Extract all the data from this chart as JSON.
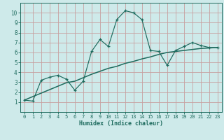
{
  "x": [
    0,
    1,
    2,
    3,
    4,
    5,
    6,
    7,
    8,
    9,
    10,
    11,
    12,
    13,
    14,
    15,
    16,
    17,
    18,
    19,
    20,
    21,
    22,
    23
  ],
  "y_scatter": [
    1.2,
    1.1,
    3.2,
    3.5,
    3.7,
    3.3,
    2.2,
    3.1,
    6.1,
    7.3,
    6.6,
    9.3,
    10.2,
    10.0,
    9.3,
    6.2,
    6.1,
    4.7,
    6.2,
    6.6,
    7.0,
    6.7,
    6.5,
    6.5
  ],
  "y_trend": [
    1.2,
    1.55,
    1.9,
    2.25,
    2.6,
    2.95,
    3.1,
    3.45,
    3.8,
    4.1,
    4.4,
    4.6,
    4.9,
    5.1,
    5.35,
    5.55,
    5.8,
    6.0,
    6.1,
    6.2,
    6.3,
    6.4,
    6.45,
    6.5
  ],
  "line_color": "#1e6b5e",
  "bg_color": "#ceeaea",
  "grid_color": "#c8a0a0",
  "xlabel": "Humidex (Indice chaleur)",
  "ylim": [
    0,
    11
  ],
  "xlim": [
    -0.5,
    23.5
  ],
  "yticks": [
    1,
    2,
    3,
    4,
    5,
    6,
    7,
    8,
    9,
    10
  ],
  "xticks": [
    0,
    1,
    2,
    3,
    4,
    5,
    6,
    7,
    8,
    9,
    10,
    11,
    12,
    13,
    14,
    15,
    16,
    17,
    18,
    19,
    20,
    21,
    22,
    23
  ]
}
